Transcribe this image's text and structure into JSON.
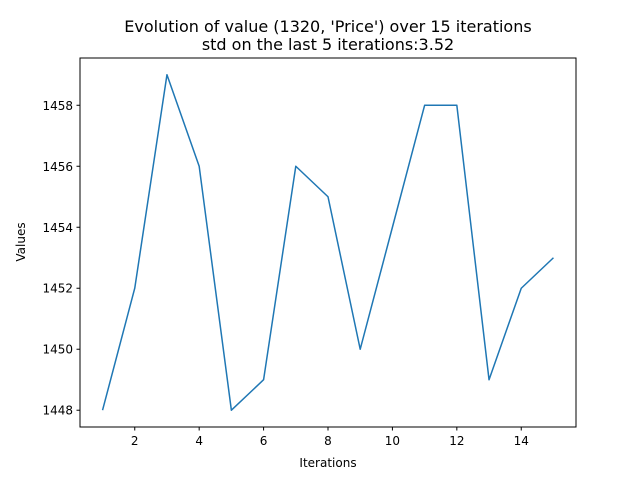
{
  "chart_data": {
    "type": "line",
    "title": "Evolution of value (1320, 'Price') over 15 iterations",
    "subtitle": "std on the last 5 iterations:3.52",
    "xlabel": "Iterations",
    "ylabel": "Values",
    "xlim": [
      0.3,
      15.7
    ],
    "ylim": [
      1447.45,
      1459.55
    ],
    "xticks": [
      2,
      4,
      6,
      8,
      10,
      12,
      14
    ],
    "yticks": [
      1448,
      1450,
      1452,
      1454,
      1456,
      1458
    ],
    "grid": false,
    "series": [
      {
        "color": "#1f77b4",
        "x": [
          1,
          2,
          3,
          4,
          5,
          6,
          7,
          8,
          9,
          10,
          11,
          12,
          13,
          14,
          15
        ],
        "y": [
          1448,
          1452,
          1459,
          1456,
          1448,
          1449,
          1456,
          1455,
          1450,
          1454,
          1458,
          1458,
          1449,
          1452,
          1453
        ]
      }
    ]
  }
}
